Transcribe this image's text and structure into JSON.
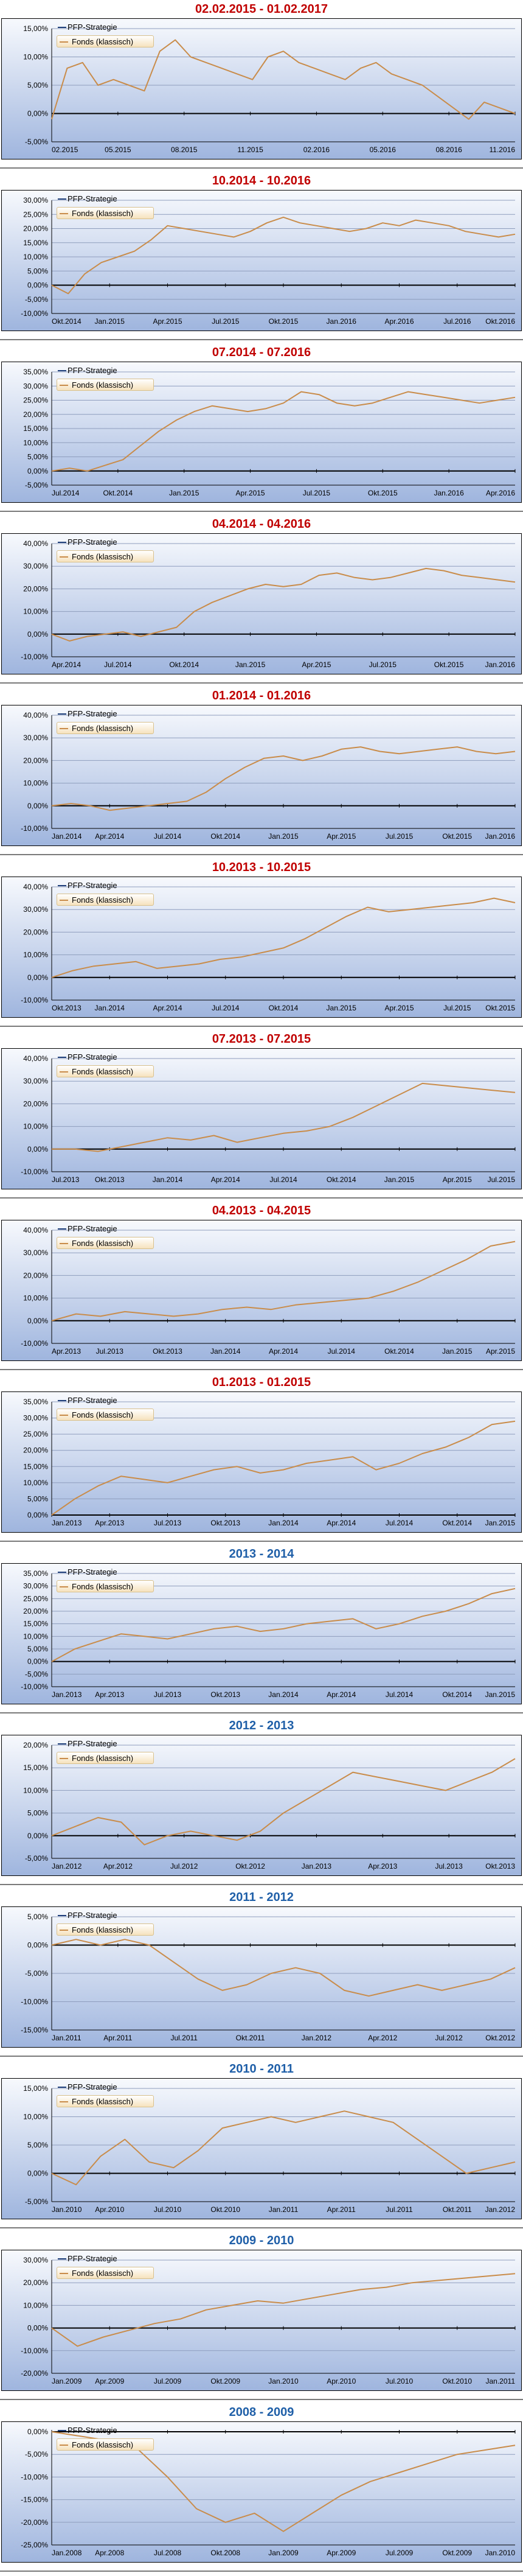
{
  "legend": {
    "strategy": "PFP-Strategie",
    "fund": "Fonds (klassisch)",
    "strategy_color": "#1f3f7a",
    "fund_color": "#c98c4a"
  },
  "colors": {
    "title_red": "#c00000",
    "title_blue": "#1f5fa8",
    "bg_top": "#f7f9fd",
    "bg_bottom": "#9fb5de"
  },
  "chart_data": [
    {
      "type": "line",
      "title": "02.02.2015 - 01.02.2017",
      "title_color": "red",
      "yticks": [
        "-5,00%",
        "0,00%",
        "5,00%",
        "10,00%",
        "15,00%"
      ],
      "ylim": [
        -5,
        15
      ],
      "xticks": [
        "02.2015",
        "05.2015",
        "08.2015",
        "11.2015",
        "02.2016",
        "05.2016",
        "08.2016",
        "11.2016"
      ],
      "series": [
        {
          "name": "Fonds (klassisch)",
          "values": [
            -1,
            8,
            9,
            5,
            6,
            5,
            4,
            11,
            13,
            10,
            9,
            8,
            7,
            6,
            10,
            11,
            9,
            8,
            7,
            6,
            8,
            9,
            7,
            6,
            5,
            3,
            1,
            -1,
            2,
            1,
            0
          ]
        }
      ]
    },
    {
      "type": "line",
      "title": "10.2014 - 10.2016",
      "title_color": "red",
      "yticks": [
        "-10,00%",
        "-5,00%",
        "0,00%",
        "5,00%",
        "10,00%",
        "15,00%",
        "20,00%",
        "25,00%",
        "30,00%"
      ],
      "ylim": [
        -10,
        30
      ],
      "xticks": [
        "Okt.2014",
        "Jan.2015",
        "Apr.2015",
        "Jul.2015",
        "Okt.2015",
        "Jan.2016",
        "Apr.2016",
        "Jul.2016",
        "Okt.2016"
      ],
      "series": [
        {
          "name": "Fonds (klassisch)",
          "values": [
            0,
            -3,
            4,
            8,
            10,
            12,
            16,
            21,
            20,
            19,
            18,
            17,
            19,
            22,
            24,
            22,
            21,
            20,
            19,
            20,
            22,
            21,
            23,
            22,
            21,
            19,
            18,
            17,
            18
          ]
        }
      ]
    },
    {
      "type": "line",
      "title": "07.2014 - 07.2016",
      "title_color": "red",
      "yticks": [
        "-5,00%",
        "0,00%",
        "5,00%",
        "10,00%",
        "15,00%",
        "20,00%",
        "25,00%",
        "30,00%",
        "35,00%"
      ],
      "ylim": [
        -5,
        35
      ],
      "xticks": [
        "Jul.2014",
        "Okt.2014",
        "Jan.2015",
        "Apr.2015",
        "Jul.2015",
        "Okt.2015",
        "Jan.2016",
        "Apr.2016"
      ],
      "series": [
        {
          "name": "Fonds (klassisch)",
          "values": [
            0,
            1,
            0,
            2,
            4,
            9,
            14,
            18,
            21,
            23,
            22,
            21,
            22,
            24,
            28,
            27,
            24,
            23,
            24,
            26,
            28,
            27,
            26,
            25,
            24,
            25,
            26
          ]
        }
      ]
    },
    {
      "type": "line",
      "title": "04.2014 - 04.2016",
      "title_color": "red",
      "yticks": [
        "-10,00%",
        "0,00%",
        "10,00%",
        "20,00%",
        "30,00%",
        "40,00%"
      ],
      "ylim": [
        -10,
        40
      ],
      "xticks": [
        "Apr.2014",
        "Jul.2014",
        "Okt.2014",
        "Jan.2015",
        "Apr.2015",
        "Jul.2015",
        "Okt.2015",
        "Jan.2016"
      ],
      "series": [
        {
          "name": "Fonds (klassisch)",
          "values": [
            0,
            -3,
            -1,
            0,
            1,
            -1,
            1,
            3,
            10,
            14,
            17,
            20,
            22,
            21,
            22,
            26,
            27,
            25,
            24,
            25,
            27,
            29,
            28,
            26,
            25,
            24,
            23
          ]
        }
      ]
    },
    {
      "type": "line",
      "title": "01.2014 - 01.2016",
      "title_color": "red",
      "yticks": [
        "-10,00%",
        "0,00%",
        "10,00%",
        "20,00%",
        "30,00%",
        "40,00%"
      ],
      "ylim": [
        -10,
        40
      ],
      "xticks": [
        "Jan.2014",
        "Apr.2014",
        "Jul.2014",
        "Okt.2014",
        "Jan.2015",
        "Apr.2015",
        "Jul.2015",
        "Okt.2015",
        "Jan.2016"
      ],
      "series": [
        {
          "name": "Fonds (klassisch)",
          "values": [
            0,
            1,
            0,
            -2,
            -1,
            0,
            1,
            2,
            6,
            12,
            17,
            21,
            22,
            20,
            22,
            25,
            26,
            24,
            23,
            24,
            25,
            26,
            24,
            23,
            24
          ]
        }
      ]
    },
    {
      "type": "line",
      "title": "10.2013 - 10.2015",
      "title_color": "red",
      "yticks": [
        "-10,00%",
        "0,00%",
        "10,00%",
        "20,00%",
        "30,00%",
        "40,00%"
      ],
      "ylim": [
        -10,
        40
      ],
      "xticks": [
        "Okt.2013",
        "Jan.2014",
        "Apr.2014",
        "Jul.2014",
        "Okt.2014",
        "Jan.2015",
        "Apr.2015",
        "Jul.2015",
        "Okt.2015"
      ],
      "series": [
        {
          "name": "Fonds (klassisch)",
          "values": [
            0,
            3,
            5,
            6,
            7,
            4,
            5,
            6,
            8,
            9,
            11,
            13,
            17,
            22,
            27,
            31,
            29,
            30,
            31,
            32,
            33,
            35,
            33
          ]
        }
      ]
    },
    {
      "type": "line",
      "title": "07.2013 - 07.2015",
      "title_color": "red",
      "yticks": [
        "-10,00%",
        "0,00%",
        "10,00%",
        "20,00%",
        "30,00%",
        "40,00%"
      ],
      "ylim": [
        -10,
        40
      ],
      "xticks": [
        "Jul.2013",
        "Okt.2013",
        "Jan.2014",
        "Apr.2014",
        "Jul.2014",
        "Okt.2014",
        "Jan.2015",
        "Apr.2015",
        "Jul.2015"
      ],
      "series": [
        {
          "name": "Fonds (klassisch)",
          "values": [
            0,
            0,
            -1,
            1,
            3,
            5,
            4,
            6,
            3,
            5,
            7,
            8,
            10,
            14,
            19,
            24,
            29,
            28,
            27,
            26,
            25
          ]
        }
      ]
    },
    {
      "type": "line",
      "title": "04.2013 - 04.2015",
      "title_color": "red",
      "yticks": [
        "-10,00%",
        "0,00%",
        "10,00%",
        "20,00%",
        "30,00%",
        "40,00%"
      ],
      "ylim": [
        -10,
        40
      ],
      "xticks": [
        "Apr.2013",
        "Jul.2013",
        "Okt.2013",
        "Jan.2014",
        "Apr.2014",
        "Jul.2014",
        "Okt.2014",
        "Jan.2015",
        "Apr.2015"
      ],
      "series": [
        {
          "name": "Fonds (klassisch)",
          "values": [
            0,
            3,
            2,
            4,
            3,
            2,
            3,
            5,
            6,
            5,
            7,
            8,
            9,
            10,
            13,
            17,
            22,
            27,
            33,
            35
          ]
        }
      ]
    },
    {
      "type": "line",
      "title": "01.2013 - 01.2015",
      "title_color": "red",
      "yticks": [
        "0,00%",
        "5,00%",
        "10,00%",
        "15,00%",
        "20,00%",
        "25,00%",
        "30,00%",
        "35,00%"
      ],
      "ylim": [
        0,
        35
      ],
      "xticks": [
        "Jan.2013",
        "Apr.2013",
        "Jul.2013",
        "Okt.2013",
        "Jan.2014",
        "Apr.2014",
        "Jul.2014",
        "Okt.2014",
        "Jan.2015"
      ],
      "series": [
        {
          "name": "Fonds (klassisch)",
          "values": [
            0,
            5,
            9,
            12,
            11,
            10,
            12,
            14,
            15,
            13,
            14,
            16,
            17,
            18,
            14,
            16,
            19,
            21,
            24,
            28,
            29
          ]
        }
      ]
    },
    {
      "type": "line",
      "title": "2013 - 2014",
      "title_color": "blue",
      "yticks": [
        "-10,00%",
        "-5,00%",
        "0,00%",
        "5,00%",
        "10,00%",
        "15,00%",
        "20,00%",
        "25,00%",
        "30,00%",
        "35,00%"
      ],
      "ylim": [
        -10,
        35
      ],
      "xticks": [
        "Jan.2013",
        "Apr.2013",
        "Jul.2013",
        "Okt.2013",
        "Jan.2014",
        "Apr.2014",
        "Jul.2014",
        "Okt.2014",
        "Jan.2015"
      ],
      "series": [
        {
          "name": "Fonds (klassisch)",
          "values": [
            0,
            5,
            8,
            11,
            10,
            9,
            11,
            13,
            14,
            12,
            13,
            15,
            16,
            17,
            13,
            15,
            18,
            20,
            23,
            27,
            29
          ]
        }
      ]
    },
    {
      "type": "line",
      "title": "2012 - 2013",
      "title_color": "blue",
      "yticks": [
        "-5,00%",
        "0,00%",
        "5,00%",
        "10,00%",
        "15,00%",
        "20,00%"
      ],
      "ylim": [
        -5,
        20
      ],
      "xticks": [
        "Jan.2012",
        "Apr.2012",
        "Jul.2012",
        "Okt.2012",
        "Jan.2013",
        "Apr.2013",
        "Jul.2013",
        "Okt.2013"
      ],
      "series": [
        {
          "name": "Fonds (klassisch)",
          "values": [
            0,
            2,
            4,
            3,
            -2,
            0,
            1,
            0,
            -1,
            1,
            5,
            8,
            11,
            14,
            13,
            12,
            11,
            10,
            12,
            14,
            17
          ]
        }
      ]
    },
    {
      "type": "line",
      "title": "2011 - 2012",
      "title_color": "blue",
      "yticks": [
        "-15,00%",
        "-10,00%",
        "-5,00%",
        "0,00%",
        "5,00%"
      ],
      "ylim": [
        -15,
        5
      ],
      "xticks": [
        "Jan.2011",
        "Apr.2011",
        "Jul.2011",
        "Okt.2011",
        "Jan.2012",
        "Apr.2012",
        "Jul.2012",
        "Okt.2012"
      ],
      "series": [
        {
          "name": "Fonds (klassisch)",
          "values": [
            0,
            1,
            0,
            1,
            0,
            -3,
            -6,
            -8,
            -7,
            -5,
            -4,
            -5,
            -8,
            -9,
            -8,
            -7,
            -8,
            -7,
            -6,
            -4
          ]
        }
      ]
    },
    {
      "type": "line",
      "title": "2010 - 2011",
      "title_color": "blue",
      "yticks": [
        "-5,00%",
        "0,00%",
        "5,00%",
        "10,00%",
        "15,00%"
      ],
      "ylim": [
        -5,
        15
      ],
      "xticks": [
        "Jan.2010",
        "Apr.2010",
        "Jul.2010",
        "Okt.2010",
        "Jan.2011",
        "Apr.2011",
        "Jul.2011",
        "Okt.2011",
        "Jan.2012"
      ],
      "series": [
        {
          "name": "Fonds (klassisch)",
          "values": [
            0,
            -2,
            3,
            6,
            2,
            1,
            4,
            8,
            9,
            10,
            9,
            10,
            11,
            10,
            9,
            6,
            3,
            0,
            1,
            2
          ]
        }
      ]
    },
    {
      "type": "line",
      "title": "2009 - 2010",
      "title_color": "blue",
      "yticks": [
        "-20,00%",
        "-10,00%",
        "0,00%",
        "10,00%",
        "20,00%",
        "30,00%"
      ],
      "ylim": [
        -20,
        30
      ],
      "xticks": [
        "Jan.2009",
        "Apr.2009",
        "Jul.2009",
        "Okt.2009",
        "Jan.2010",
        "Apr.2010",
        "Jul.2010",
        "Okt.2010",
        "Jan.2011"
      ],
      "series": [
        {
          "name": "Fonds (klassisch)",
          "values": [
            0,
            -8,
            -4,
            -1,
            2,
            4,
            8,
            10,
            12,
            11,
            13,
            15,
            17,
            18,
            20,
            21,
            22,
            23,
            24
          ]
        }
      ]
    },
    {
      "type": "line",
      "title": "2008 - 2009",
      "title_color": "blue",
      "yticks": [
        "-25,00%",
        "-20,00%",
        "-15,00%",
        "-10,00%",
        "-5,00%",
        "0,00%"
      ],
      "ylim": [
        -25,
        0
      ],
      "xticks": [
        "Jan.2008",
        "Apr.2008",
        "Jul.2008",
        "Okt.2008",
        "Jan.2009",
        "Apr.2009",
        "Jul.2009",
        "Okt.2009",
        "Jan.2010"
      ],
      "series": [
        {
          "name": "Fonds (klassisch)",
          "values": [
            0,
            -1,
            -2,
            -4,
            -10,
            -17,
            -20,
            -18,
            -22,
            -18,
            -14,
            -11,
            -9,
            -7,
            -5,
            -4,
            -3
          ]
        }
      ]
    }
  ]
}
